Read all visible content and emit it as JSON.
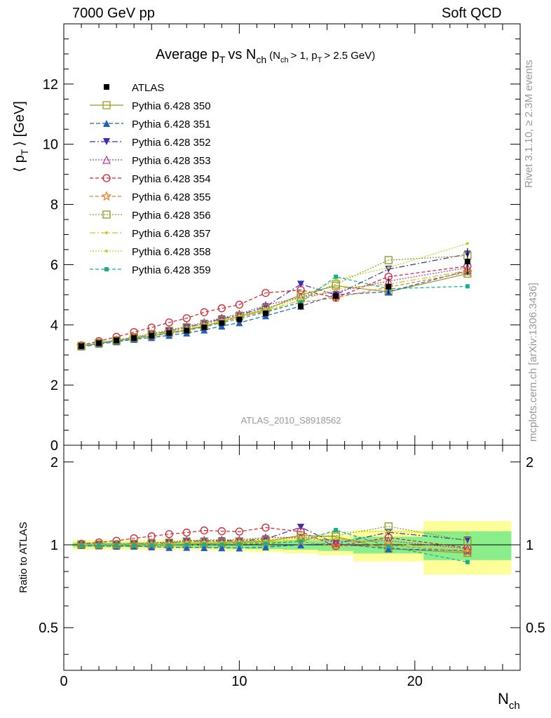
{
  "header": {
    "left": "7000 GeV pp",
    "right": "Soft QCD",
    "title_main": "Average p",
    "title_sub": "T",
    "title_vs": "vs N",
    "title_ch": "ch",
    "title_cond": "(N",
    "title_cond_ch": "ch",
    "title_cond2": "> 1, p",
    "title_cond_T": "T",
    "title_cond3": "> 2.5 GeV)",
    "analysis": "ATLAS_2010_S8918562",
    "rivet": "Rivet 3.1.10, ≥ 2.3M events",
    "mcplots": "mcplots.cern.ch [arXiv:1306.3436]"
  },
  "axes": {
    "ylabel_main_pre": "⟨ p",
    "ylabel_main_sub": "T",
    "ylabel_main_post": "⟩  [GeV]",
    "ylabel_ratio": "Ratio to ATLAS",
    "xlabel_main": "N",
    "xlabel_sub": "ch"
  },
  "chart_data": {
    "type": "scatter",
    "x_range": [
      0,
      26
    ],
    "main_y_range": [
      0,
      14
    ],
    "ratio_y_range": [
      0.35,
      2.3
    ],
    "ratio_log": true,
    "x_ticks": [
      "0",
      "10",
      "20"
    ],
    "main_y_ticks": [
      "0",
      "2",
      "4",
      "6",
      "8",
      "10",
      "12"
    ],
    "ratio_y_ticks": [
      "0.5",
      "1",
      "2"
    ],
    "x": [
      1,
      2,
      3,
      4,
      5,
      6,
      7,
      8,
      9,
      10,
      11.5,
      13.5,
      15.5,
      18.5,
      23
    ],
    "data": {
      "name": "ATLAS",
      "values": [
        3.29,
        3.39,
        3.48,
        3.56,
        3.64,
        3.73,
        3.81,
        3.92,
        4.06,
        4.18,
        4.38,
        4.62,
        4.95,
        5.27,
        6.1
      ],
      "errors": [
        0.02,
        0.03,
        0.03,
        0.04,
        0.04,
        0.05,
        0.05,
        0.06,
        0.07,
        0.08,
        0.09,
        0.12,
        0.16,
        0.25,
        0.45
      ]
    },
    "band_x_edges": [
      0.5,
      1.5,
      2.5,
      3.5,
      4.5,
      5.5,
      6.5,
      7.5,
      8.5,
      9.5,
      10.5,
      12.5,
      14.5,
      16.5,
      20.5,
      25.5
    ],
    "band_inner": [
      0.02,
      0.02,
      0.02,
      0.02,
      0.02,
      0.02,
      0.025,
      0.025,
      0.03,
      0.03,
      0.035,
      0.04,
      0.05,
      0.07,
      0.12
    ],
    "band_outer": [
      0.04,
      0.04,
      0.04,
      0.04,
      0.04,
      0.04,
      0.045,
      0.045,
      0.05,
      0.05,
      0.06,
      0.07,
      0.085,
      0.13,
      0.22
    ],
    "colors": {
      "band_inner": "#8aef8a",
      "band_outer": "#fdfd99"
    },
    "series": [
      {
        "name": "Pythia 6.428 350",
        "color": "#9a9a1e",
        "dash": "",
        "marker": "sq_open",
        "values": [
          3.29,
          3.39,
          3.47,
          3.55,
          3.64,
          3.73,
          3.83,
          3.95,
          4.12,
          4.28,
          4.5,
          5.0,
          5.3,
          5.1,
          5.7
        ]
      },
      {
        "name": "Pythia 6.428 351",
        "color": "#1f5fbf",
        "dash": "6,3",
        "marker": "tri_up",
        "values": [
          3.27,
          3.36,
          3.44,
          3.52,
          3.58,
          3.65,
          3.73,
          3.83,
          3.96,
          4.07,
          4.3,
          4.62,
          5.0,
          5.1,
          5.8
        ]
      },
      {
        "name": "Pythia 6.428 352",
        "color": "#3d2fb8",
        "dash": "8,3,2,3",
        "marker": "tri_down",
        "values": [
          3.3,
          3.4,
          3.49,
          3.58,
          3.68,
          3.79,
          3.91,
          4.05,
          4.2,
          4.32,
          4.6,
          5.35,
          5.0,
          5.85,
          6.35
        ]
      },
      {
        "name": "Pythia 6.428 353",
        "color": "#b33a9a",
        "dash": "2,2",
        "marker": "tri_open",
        "values": [
          3.3,
          3.41,
          3.5,
          3.6,
          3.71,
          3.82,
          3.95,
          4.08,
          4.23,
          4.36,
          4.65,
          4.92,
          5.1,
          5.45,
          5.9
        ]
      },
      {
        "name": "Pythia 6.428 354",
        "color": "#dd1e2f",
        "dash": "5,3",
        "marker": "circ_open",
        "values": [
          3.32,
          3.46,
          3.6,
          3.76,
          3.91,
          4.08,
          4.22,
          4.42,
          4.55,
          4.67,
          5.06,
          5.16,
          4.9,
          5.6,
          5.95
        ]
      },
      {
        "name": "Pythia 6.428 355",
        "color": "#ef7a25",
        "dash": "5,3",
        "marker": "star_open",
        "values": [
          3.29,
          3.39,
          3.48,
          3.57,
          3.65,
          3.74,
          3.84,
          3.96,
          4.1,
          4.25,
          4.45,
          4.75,
          4.9,
          5.25,
          5.75
        ]
      },
      {
        "name": "Pythia 6.428 356",
        "color": "#8a9a1e",
        "dash": "2,2",
        "marker": "sq_open",
        "values": [
          3.3,
          3.4,
          3.49,
          3.59,
          3.69,
          3.8,
          3.92,
          4.03,
          4.16,
          4.3,
          4.55,
          4.9,
          5.35,
          6.15,
          6.3
        ]
      },
      {
        "name": "Pythia 6.428 357",
        "color": "#d4c21e",
        "dash": "8,3,2,3",
        "marker": "dot",
        "values": [
          3.3,
          3.39,
          3.48,
          3.57,
          3.66,
          3.75,
          3.86,
          3.98,
          4.12,
          4.26,
          4.48,
          4.82,
          5.2,
          5.35,
          5.8
        ]
      },
      {
        "name": "Pythia 6.428 358",
        "color": "#bdd41e",
        "dash": "2,2",
        "marker": "dot",
        "values": [
          3.3,
          3.4,
          3.49,
          3.58,
          3.68,
          3.78,
          3.9,
          4.02,
          4.15,
          4.3,
          4.52,
          4.9,
          5.5,
          5.9,
          6.7
        ]
      },
      {
        "name": "Pythia 6.428 359",
        "color": "#17b08a",
        "dash": "5,3",
        "marker": "sq_fill",
        "values": [
          3.28,
          3.38,
          3.47,
          3.55,
          3.63,
          3.71,
          3.81,
          3.93,
          4.07,
          4.2,
          4.42,
          4.75,
          5.6,
          5.2,
          5.28
        ]
      }
    ]
  }
}
